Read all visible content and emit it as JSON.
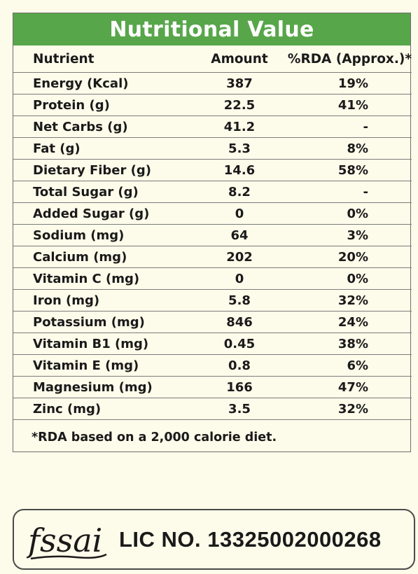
{
  "title": "Nutritional Value",
  "table": {
    "headers": {
      "nutrient": "Nutrient",
      "amount": "Amount",
      "rda": "%RDA (Approx.)*"
    },
    "rows": [
      {
        "nutrient": "Energy (Kcal)",
        "amount": "387",
        "rda": "19%"
      },
      {
        "nutrient": "Protein (g)",
        "amount": "22.5",
        "rda": "41%"
      },
      {
        "nutrient": "Net Carbs (g)",
        "amount": "41.2",
        "rda": "-"
      },
      {
        "nutrient": "Fat (g)",
        "amount": "5.3",
        "rda": "8%"
      },
      {
        "nutrient": "Dietary Fiber (g)",
        "amount": "14.6",
        "rda": "58%"
      },
      {
        "nutrient": "Total Sugar (g)",
        "amount": "8.2",
        "rda": "-"
      },
      {
        "nutrient": "Added Sugar (g)",
        "amount": "0",
        "rda": "0%"
      },
      {
        "nutrient": "Sodium (mg)",
        "amount": "64",
        "rda": "3%"
      },
      {
        "nutrient": "Calcium (mg)",
        "amount": "202",
        "rda": "20%"
      },
      {
        "nutrient": "Vitamin C (mg)",
        "amount": "0",
        "rda": "0%"
      },
      {
        "nutrient": "Iron (mg)",
        "amount": "5.8",
        "rda": "32%"
      },
      {
        "nutrient": "Potassium (mg)",
        "amount": "846",
        "rda": "24%"
      },
      {
        "nutrient": "Vitamin B1 (mg)",
        "amount": "0.45",
        "rda": "38%"
      },
      {
        "nutrient": "Vitamin E (mg)",
        "amount": "0.8",
        "rda": "6%"
      },
      {
        "nutrient": "Magnesium (mg)",
        "amount": "166",
        "rda": "47%"
      },
      {
        "nutrient": "Zinc (mg)",
        "amount": "3.5",
        "rda": "32%"
      }
    ]
  },
  "footnote": "*RDA based on a 2,000 calorie diet.",
  "license": {
    "logo_text": "fssai",
    "logo_icon": "fssai-logo",
    "text": "LIC NO. 13325002000268"
  },
  "colors": {
    "header_bg": "#57a64a",
    "page_bg": "#fdfbea",
    "text": "#1a1a1a"
  }
}
